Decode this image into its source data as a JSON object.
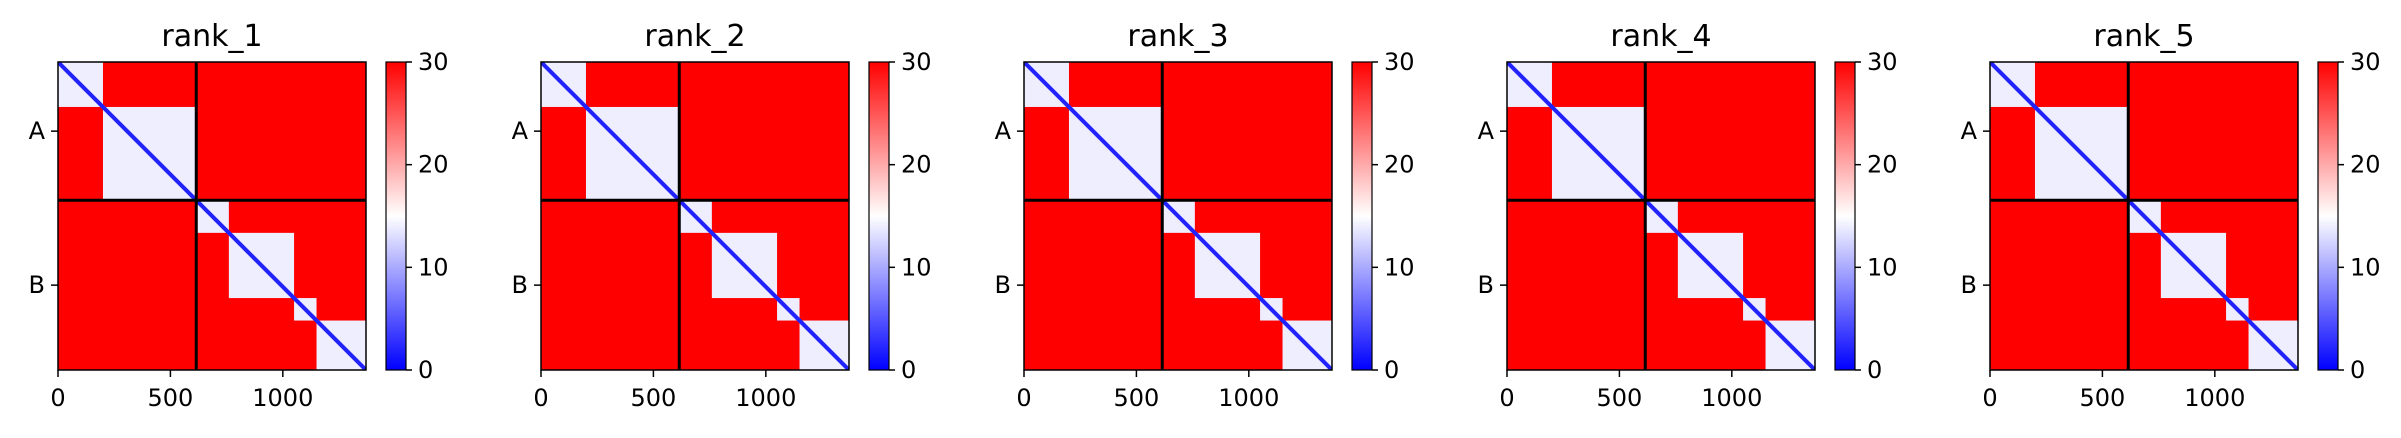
{
  "figure": {
    "colormap": {
      "low": "#0000ff",
      "mid": "#ffffff",
      "high": "#ff0000"
    },
    "separator_color": "#000000"
  },
  "chart_data": [
    {
      "type": "heatmap",
      "title": "rank_1",
      "xlim": [
        0,
        1370
      ],
      "xticks": [
        0,
        500,
        1000
      ],
      "xtick_labels": [
        "0",
        "500",
        "1000"
      ],
      "chain_labels": [
        "A",
        "B"
      ],
      "chain_boundary": 615,
      "chain_length_total": 1370,
      "colorbar": {
        "min": 0,
        "max": 30,
        "ticks": [
          0,
          10,
          20,
          30
        ],
        "tick_labels": [
          "0",
          "10",
          "20",
          "30"
        ]
      },
      "blocks": [
        [
          0,
          200
        ],
        [
          200,
          615
        ],
        [
          615,
          760
        ],
        [
          760,
          1050
        ],
        [
          1050,
          1150
        ],
        [
          1150,
          1370
        ]
      ],
      "background_value": 30,
      "intra_chain_value": 14,
      "diagonal_value": 2
    },
    {
      "type": "heatmap",
      "title": "rank_2",
      "xlim": [
        0,
        1370
      ],
      "xticks": [
        0,
        500,
        1000
      ],
      "xtick_labels": [
        "0",
        "500",
        "1000"
      ],
      "chain_labels": [
        "A",
        "B"
      ],
      "chain_boundary": 615,
      "chain_length_total": 1370,
      "colorbar": {
        "min": 0,
        "max": 30,
        "ticks": [
          0,
          10,
          20,
          30
        ],
        "tick_labels": [
          "0",
          "10",
          "20",
          "30"
        ]
      },
      "blocks": [
        [
          0,
          200
        ],
        [
          200,
          615
        ],
        [
          615,
          760
        ],
        [
          760,
          1050
        ],
        [
          1050,
          1150
        ],
        [
          1150,
          1370
        ]
      ],
      "background_value": 30,
      "intra_chain_value": 14,
      "diagonal_value": 2
    },
    {
      "type": "heatmap",
      "title": "rank_3",
      "xlim": [
        0,
        1370
      ],
      "xticks": [
        0,
        500,
        1000
      ],
      "xtick_labels": [
        "0",
        "500",
        "1000"
      ],
      "chain_labels": [
        "A",
        "B"
      ],
      "chain_boundary": 615,
      "chain_length_total": 1370,
      "colorbar": {
        "min": 0,
        "max": 30,
        "ticks": [
          0,
          10,
          20,
          30
        ],
        "tick_labels": [
          "0",
          "10",
          "20",
          "30"
        ]
      },
      "blocks": [
        [
          0,
          200
        ],
        [
          200,
          615
        ],
        [
          615,
          760
        ],
        [
          760,
          1050
        ],
        [
          1050,
          1150
        ],
        [
          1150,
          1370
        ]
      ],
      "background_value": 30,
      "intra_chain_value": 14,
      "diagonal_value": 2
    },
    {
      "type": "heatmap",
      "title": "rank_4",
      "xlim": [
        0,
        1370
      ],
      "xticks": [
        0,
        500,
        1000
      ],
      "xtick_labels": [
        "0",
        "500",
        "1000"
      ],
      "chain_labels": [
        "A",
        "B"
      ],
      "chain_boundary": 615,
      "chain_length_total": 1370,
      "colorbar": {
        "min": 0,
        "max": 30,
        "ticks": [
          0,
          10,
          20,
          30
        ],
        "tick_labels": [
          "0",
          "10",
          "20",
          "30"
        ]
      },
      "blocks": [
        [
          0,
          200
        ],
        [
          200,
          615
        ],
        [
          615,
          760
        ],
        [
          760,
          1050
        ],
        [
          1050,
          1150
        ],
        [
          1150,
          1370
        ]
      ],
      "background_value": 30,
      "intra_chain_value": 14,
      "diagonal_value": 2
    },
    {
      "type": "heatmap",
      "title": "rank_5",
      "xlim": [
        0,
        1370
      ],
      "xticks": [
        0,
        500,
        1000
      ],
      "xtick_labels": [
        "0",
        "500",
        "1000"
      ],
      "chain_labels": [
        "A",
        "B"
      ],
      "chain_boundary": 615,
      "chain_length_total": 1370,
      "colorbar": {
        "min": 0,
        "max": 30,
        "ticks": [
          0,
          10,
          20,
          30
        ],
        "tick_labels": [
          "0",
          "10",
          "20",
          "30"
        ]
      },
      "blocks": [
        [
          0,
          200
        ],
        [
          200,
          615
        ],
        [
          615,
          760
        ],
        [
          760,
          1050
        ],
        [
          1050,
          1150
        ],
        [
          1150,
          1370
        ]
      ],
      "background_value": 30,
      "intra_chain_value": 14,
      "diagonal_value": 2
    }
  ]
}
